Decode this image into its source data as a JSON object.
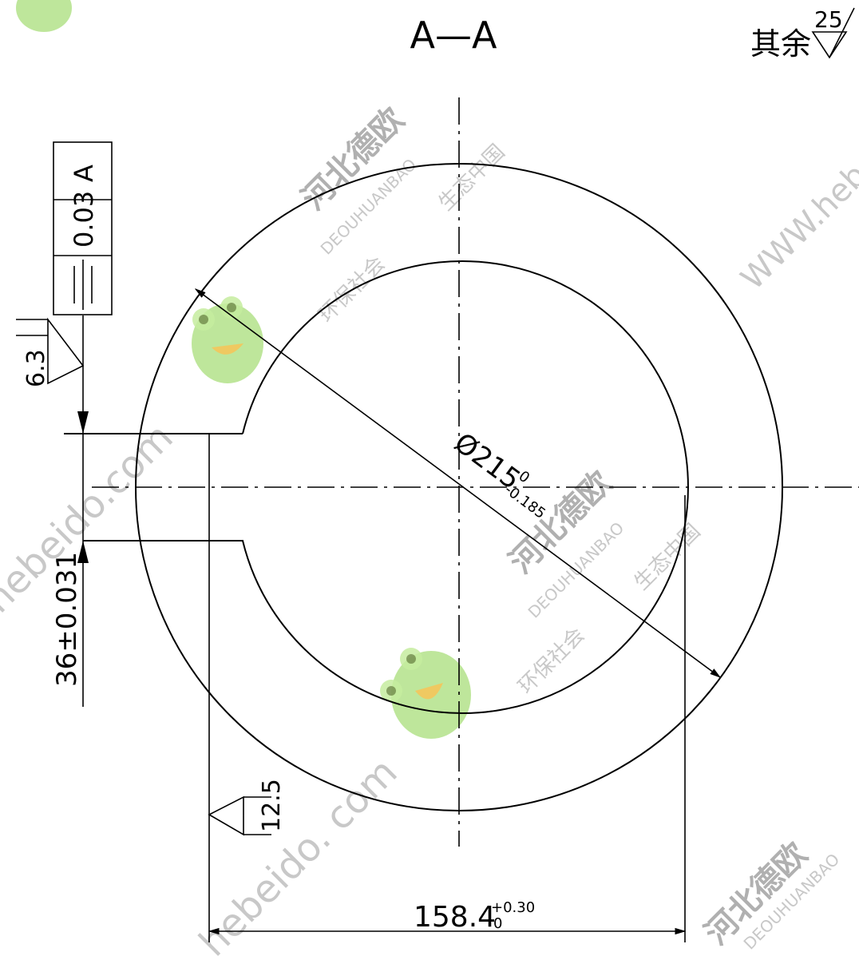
{
  "section_title": "A—A",
  "surface_finish_general": {
    "prefix": "其余",
    "value": "25"
  },
  "tolerance_frame": {
    "symbol": "⌯",
    "value": "0.03",
    "datum": "A"
  },
  "roughness_notes": {
    "keyway_side": "6.3",
    "bottom_edge": "12.5"
  },
  "dimensions": {
    "diameter": {
      "prefix": "Ø",
      "nominal": "215",
      "upper": "0",
      "lower": "-0.185"
    },
    "keyway_width": "36±0.031",
    "width_overall": {
      "nominal": "158.4",
      "upper": "+0.30",
      "lower": "0"
    }
  },
  "watermarks": {
    "company_cn": "河北德欧",
    "company_en": "DEOUHUANBAO",
    "slogan_a": "环保社会",
    "slogan_b": "生态中国",
    "website_a": "WWW.hebeido.com",
    "website_b": "hebeido.com",
    "website_c": "hebeido. com"
  }
}
